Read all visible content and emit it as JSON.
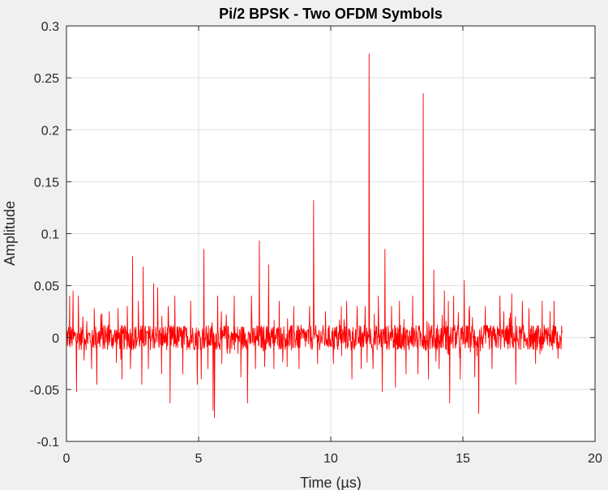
{
  "chart_data": {
    "type": "line",
    "title": "Pi/2 BPSK - Two OFDM Symbols",
    "xlabel": "Time (µs)",
    "ylabel": "Amplitude",
    "xlim": [
      0,
      20
    ],
    "ylim": [
      -0.1,
      0.3
    ],
    "xticks": [
      0,
      5,
      10,
      15,
      20
    ],
    "yticks": [
      -0.1,
      -0.05,
      0,
      0.05,
      0.1,
      0.15,
      0.2,
      0.25,
      0.3
    ],
    "xtick_labels": [
      "0",
      "5",
      "10",
      "15",
      "20"
    ],
    "ytick_labels": [
      "-0.1",
      "-0.05",
      "0",
      "0.05",
      "0.1",
      "0.15",
      "0.2",
      "0.25",
      "0.3"
    ],
    "grid": true,
    "series_color": "#ff0000",
    "noise_amplitude": 0.012,
    "series": [
      {
        "x_range": [
          0,
          18.75
        ],
        "peaks": [
          [
            0.08,
            0.01
          ],
          [
            0.12,
            0.04
          ],
          [
            0.25,
            0.045
          ],
          [
            0.38,
            -0.052
          ],
          [
            0.45,
            0.04
          ],
          [
            0.62,
            0.02
          ],
          [
            0.95,
            -0.03
          ],
          [
            1.05,
            0.028
          ],
          [
            1.15,
            -0.045
          ],
          [
            1.3,
            0.022
          ],
          [
            1.62,
            0.025
          ],
          [
            1.95,
            0.028
          ],
          [
            2.1,
            -0.04
          ],
          [
            2.3,
            0.03
          ],
          [
            2.42,
            -0.03
          ],
          [
            2.5,
            0.078
          ],
          [
            2.72,
            0.035
          ],
          [
            2.85,
            -0.045
          ],
          [
            2.9,
            0.068
          ],
          [
            3.1,
            -0.03
          ],
          [
            3.3,
            0.052
          ],
          [
            3.45,
            0.048
          ],
          [
            3.6,
            -0.035
          ],
          [
            3.85,
            0.03
          ],
          [
            3.92,
            -0.063
          ],
          [
            4.1,
            0.04
          ],
          [
            4.4,
            -0.035
          ],
          [
            4.7,
            0.035
          ],
          [
            4.95,
            -0.045
          ],
          [
            5.1,
            -0.04
          ],
          [
            5.2,
            0.085
          ],
          [
            5.35,
            -0.03
          ],
          [
            5.55,
            -0.07
          ],
          [
            5.6,
            -0.077
          ],
          [
            5.72,
            0.04
          ],
          [
            5.88,
            -0.025
          ],
          [
            6.05,
            0.022
          ],
          [
            6.35,
            0.04
          ],
          [
            6.6,
            -0.038
          ],
          [
            6.85,
            -0.063
          ],
          [
            7.0,
            0.04
          ],
          [
            7.15,
            -0.03
          ],
          [
            7.3,
            0.093
          ],
          [
            7.5,
            -0.028
          ],
          [
            7.65,
            0.07
          ],
          [
            7.85,
            -0.03
          ],
          [
            8.05,
            0.035
          ],
          [
            8.35,
            -0.028
          ],
          [
            8.6,
            0.03
          ],
          [
            8.8,
            -0.03
          ],
          [
            9.2,
            0.03
          ],
          [
            9.35,
            0.132
          ],
          [
            9.5,
            -0.025
          ],
          [
            9.8,
            0.025
          ],
          [
            10.1,
            -0.025
          ],
          [
            10.4,
            0.03
          ],
          [
            10.6,
            0.035
          ],
          [
            10.8,
            -0.04
          ],
          [
            11.0,
            0.03
          ],
          [
            11.15,
            -0.03
          ],
          [
            11.3,
            0.03
          ],
          [
            11.45,
            0.273
          ],
          [
            11.6,
            -0.03
          ],
          [
            11.8,
            0.04
          ],
          [
            11.95,
            -0.052
          ],
          [
            12.05,
            0.085
          ],
          [
            12.3,
            0.03
          ],
          [
            12.45,
            -0.048
          ],
          [
            12.6,
            0.035
          ],
          [
            12.85,
            -0.035
          ],
          [
            13.1,
            0.04
          ],
          [
            13.3,
            -0.035
          ],
          [
            13.5,
            0.235
          ],
          [
            13.7,
            -0.04
          ],
          [
            13.9,
            0.065
          ],
          [
            14.1,
            -0.03
          ],
          [
            14.3,
            0.045
          ],
          [
            14.45,
            0.035
          ],
          [
            14.5,
            -0.063
          ],
          [
            14.65,
            0.04
          ],
          [
            14.9,
            -0.04
          ],
          [
            15.05,
            0.055
          ],
          [
            15.25,
            0.03
          ],
          [
            15.45,
            -0.038
          ],
          [
            15.6,
            -0.073
          ],
          [
            15.85,
            0.03
          ],
          [
            16.1,
            -0.03
          ],
          [
            16.4,
            0.04
          ],
          [
            16.55,
            0.025
          ],
          [
            16.85,
            0.042
          ],
          [
            17.0,
            -0.045
          ],
          [
            17.25,
            0.035
          ],
          [
            17.5,
            0.028
          ],
          [
            17.75,
            -0.025
          ],
          [
            18.0,
            0.035
          ],
          [
            18.3,
            0.025
          ],
          [
            18.45,
            0.035
          ],
          [
            18.6,
            -0.02
          ]
        ]
      }
    ]
  }
}
